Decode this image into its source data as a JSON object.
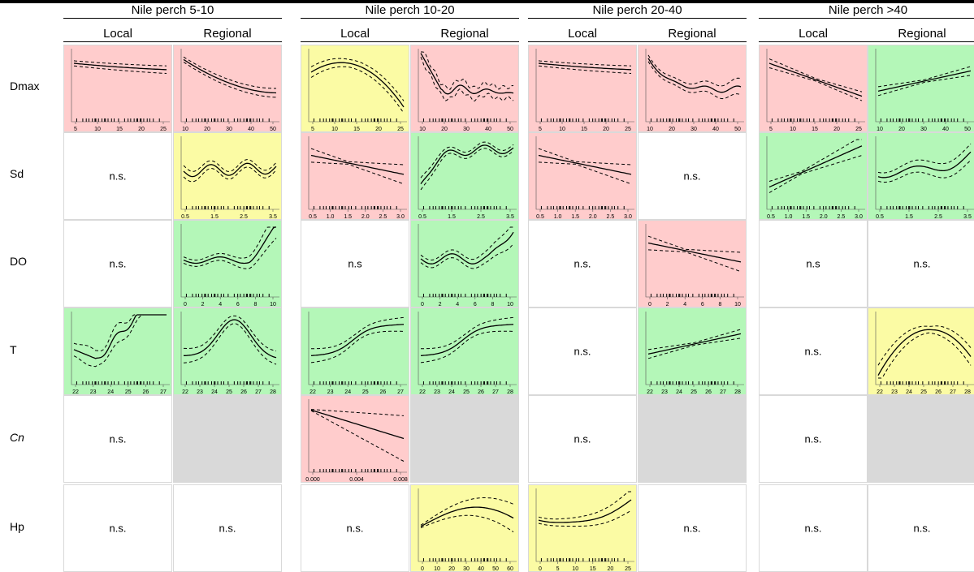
{
  "groups": [
    {
      "title": "Nile perch 5-10"
    },
    {
      "title": "Nile perch 10-20"
    },
    {
      "title": "Nile perch 20-40"
    },
    {
      "title": "Nile perch >40"
    }
  ],
  "column_labels": {
    "local": "Local",
    "regional": "Regional"
  },
  "rows": [
    {
      "label": "Dmax",
      "italic": false
    },
    {
      "label": "Sd",
      "italic": false
    },
    {
      "label": "DO",
      "italic": false
    },
    {
      "label": "T",
      "italic": false
    },
    {
      "label": "Cn",
      "italic": true
    },
    {
      "label": "Hp",
      "italic": false
    }
  ],
  "colors": {
    "negative": "#ffcccc",
    "positive": "#b4f7b8",
    "nonlinear": "#fbfba4",
    "not_applicable": "#d9d9d9",
    "none": "#ffffff"
  },
  "ns_labels": {
    "dot": "n.s.",
    "nodot": "n.s"
  },
  "tick_sets": {
    "dmax_local": [
      "5",
      "10",
      "15",
      "20",
      "25"
    ],
    "dmax_regional": [
      "10",
      "20",
      "30",
      "40",
      "50"
    ],
    "sd_local": [
      "0.5",
      "1.0",
      "1.5",
      "2.0",
      "2.5",
      "3.0"
    ],
    "sd_regional": [
      "0.5",
      "1.5",
      "2.5",
      "3.5"
    ],
    "do": [
      "0",
      "2",
      "4",
      "6",
      "8",
      "10"
    ],
    "t_local": [
      "22",
      "23",
      "24",
      "25",
      "26",
      "27"
    ],
    "t_regional": [
      "22",
      "23",
      "24",
      "25",
      "26",
      "27",
      "28"
    ],
    "cn": [
      "0.000",
      "0.004",
      "0.008"
    ],
    "hp_regional": [
      "0",
      "10",
      "20",
      "30",
      "40",
      "50",
      "60"
    ],
    "hp_local": [
      "0",
      "5",
      "10",
      "15",
      "20",
      "25"
    ]
  },
  "cells": [
    [
      {
        "bg": "negative",
        "shape": "decline_flat",
        "ticks": "dmax_local"
      },
      {
        "bg": "negative",
        "shape": "decline_curve",
        "ticks": "dmax_regional"
      },
      {
        "bg": "nonlinear",
        "shape": "u_shape",
        "ticks": "dmax_local"
      },
      {
        "bg": "negative",
        "shape": "steep_wiggle",
        "ticks": "dmax_regional"
      },
      {
        "bg": "negative",
        "shape": "decline_flat",
        "ticks": "dmax_local"
      },
      {
        "bg": "negative",
        "shape": "decline_wiggle",
        "ticks": "dmax_regional"
      },
      {
        "bg": "negative",
        "shape": "linear_down",
        "ticks": "dmax_local"
      },
      {
        "bg": "positive",
        "shape": "linear_up_gentle",
        "ticks": "dmax_regional"
      }
    ],
    [
      {
        "bg": "none",
        "ns": "dot"
      },
      {
        "bg": "nonlinear",
        "shape": "wave",
        "ticks": "sd_regional"
      },
      {
        "bg": "negative",
        "shape": "linear_down_fan",
        "ticks": "sd_local"
      },
      {
        "bg": "positive",
        "shape": "rise_wave",
        "ticks": "sd_regional"
      },
      {
        "bg": "negative",
        "shape": "linear_down_fan",
        "ticks": "sd_local"
      },
      {
        "bg": "none",
        "ns": "dot"
      },
      {
        "bg": "positive",
        "shape": "linear_up_steep",
        "ticks": "sd_local"
      },
      {
        "bg": "positive",
        "shape": "dip_rise",
        "ticks": "sd_regional"
      }
    ],
    [
      {
        "bg": "none",
        "ns": "dot"
      },
      {
        "bg": "positive",
        "shape": "flat_then_up",
        "ticks": "do"
      },
      {
        "bg": "none",
        "ns": "nodot"
      },
      {
        "bg": "positive",
        "shape": "wave_then_up",
        "ticks": "do"
      },
      {
        "bg": "none",
        "ns": "dot"
      },
      {
        "bg": "negative",
        "shape": "linear_down_fan",
        "ticks": "do"
      },
      {
        "bg": "none",
        "ns": "nodot"
      },
      {
        "bg": "none",
        "ns": "dot"
      }
    ],
    [
      {
        "bg": "positive",
        "shape": "dip_up_wiggle",
        "ticks": "t_local"
      },
      {
        "bg": "positive",
        "shape": "hump",
        "ticks": "t_regional"
      },
      {
        "bg": "positive",
        "shape": "sigmoid_up",
        "ticks": "t_local"
      },
      {
        "bg": "positive",
        "shape": "sigmoid_up",
        "ticks": "t_regional"
      },
      {
        "bg": "none",
        "ns": "dot"
      },
      {
        "bg": "positive",
        "shape": "linear_up_gentle",
        "ticks": "t_regional"
      },
      {
        "bg": "none",
        "ns": "dot"
      },
      {
        "bg": "nonlinear",
        "shape": "v_shape",
        "ticks": "t_regional"
      }
    ],
    [
      {
        "bg": "none",
        "ns": "dot"
      },
      {
        "bg": "not_applicable"
      },
      {
        "bg": "negative",
        "shape": "linear_down_fan_strong",
        "ticks": "cn"
      },
      {
        "bg": "not_applicable"
      },
      {
        "bg": "none",
        "ns": "dot"
      },
      {
        "bg": "not_applicable"
      },
      {
        "bg": "none",
        "ns": "dot"
      },
      {
        "bg": "not_applicable"
      }
    ],
    [
      {
        "bg": "none",
        "ns": "dot"
      },
      {
        "bg": "none",
        "ns": "dot"
      },
      {
        "bg": "none",
        "ns": "dot"
      },
      {
        "bg": "nonlinear",
        "shape": "hump_wide",
        "ticks": "hp_regional"
      },
      {
        "bg": "nonlinear",
        "shape": "dip_then_up",
        "ticks": "hp_local"
      },
      {
        "bg": "none",
        "ns": "dot"
      },
      {
        "bg": "none",
        "ns": "dot"
      },
      {
        "bg": "none",
        "ns": "dot"
      }
    ]
  ]
}
